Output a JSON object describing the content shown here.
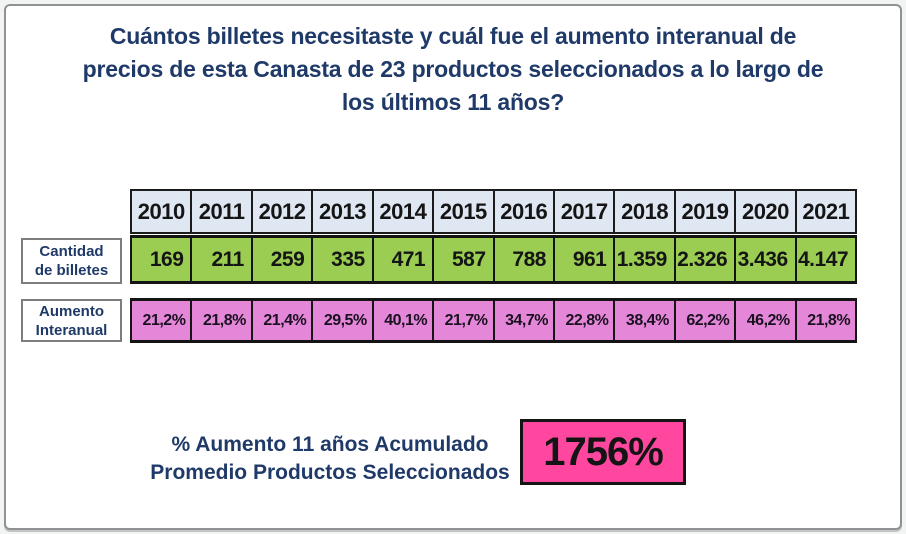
{
  "title": {
    "lines": [
      "Cuántos billetes necesitaste y cuál fue el aumento interanual de",
      "precios de esta Canasta de 23 productos seleccionados a lo largo de",
      "los últimos 11 años?"
    ]
  },
  "table": {
    "years": [
      "2010",
      "2011",
      "2012",
      "2013",
      "2014",
      "2015",
      "2016",
      "2017",
      "2018",
      "2019",
      "2020",
      "2021"
    ],
    "rows": [
      {
        "label_lines": [
          "Cantidad",
          "de billetes"
        ],
        "values": [
          "169",
          "211",
          "259",
          "335",
          "471",
          "587",
          "788",
          "961",
          "1.359",
          "2.326",
          "3.436",
          "4.147"
        ]
      },
      {
        "label_lines": [
          "Aumento",
          "Interanual"
        ],
        "values": [
          "21,2%",
          "21,8%",
          "21,4%",
          "29,5%",
          "40,1%",
          "21,7%",
          "34,7%",
          "22,8%",
          "38,4%",
          "62,2%",
          "46,2%",
          "21,8%"
        ]
      }
    ]
  },
  "summary": {
    "label_lines": [
      "% Aumento 11 años Acumulado",
      "Promedio Productos Seleccionados"
    ],
    "value": "1756%"
  },
  "colors": {
    "title_text": "#1f3a68",
    "year_header_bg": "#dee7f2",
    "billetes_row_bg": "#9acd52",
    "interanual_row_bg": "#e487d8",
    "total_box_bg": "#ff47a0",
    "cell_border": "#141414"
  },
  "chart_data": {
    "type": "table",
    "title": "Cuántos billetes necesitaste y cuál fue el aumento interanual de precios de esta Canasta de 23 productos seleccionados a lo largo de los últimos 11 años?",
    "categories": [
      "2010",
      "2011",
      "2012",
      "2013",
      "2014",
      "2015",
      "2016",
      "2017",
      "2018",
      "2019",
      "2020",
      "2021"
    ],
    "series": [
      {
        "name": "Cantidad de billetes",
        "values": [
          169,
          211,
          259,
          335,
          471,
          587,
          788,
          961,
          1359,
          2326,
          3436,
          4147
        ]
      },
      {
        "name": "Aumento Interanual (%)",
        "values": [
          21.2,
          21.8,
          21.4,
          29.5,
          40.1,
          21.7,
          34.7,
          22.8,
          38.4,
          62.2,
          46.2,
          21.8
        ]
      }
    ],
    "annotation": {
      "label": "% Aumento 11 años Acumulado Promedio Productos Seleccionados",
      "value_pct": 1756
    }
  }
}
